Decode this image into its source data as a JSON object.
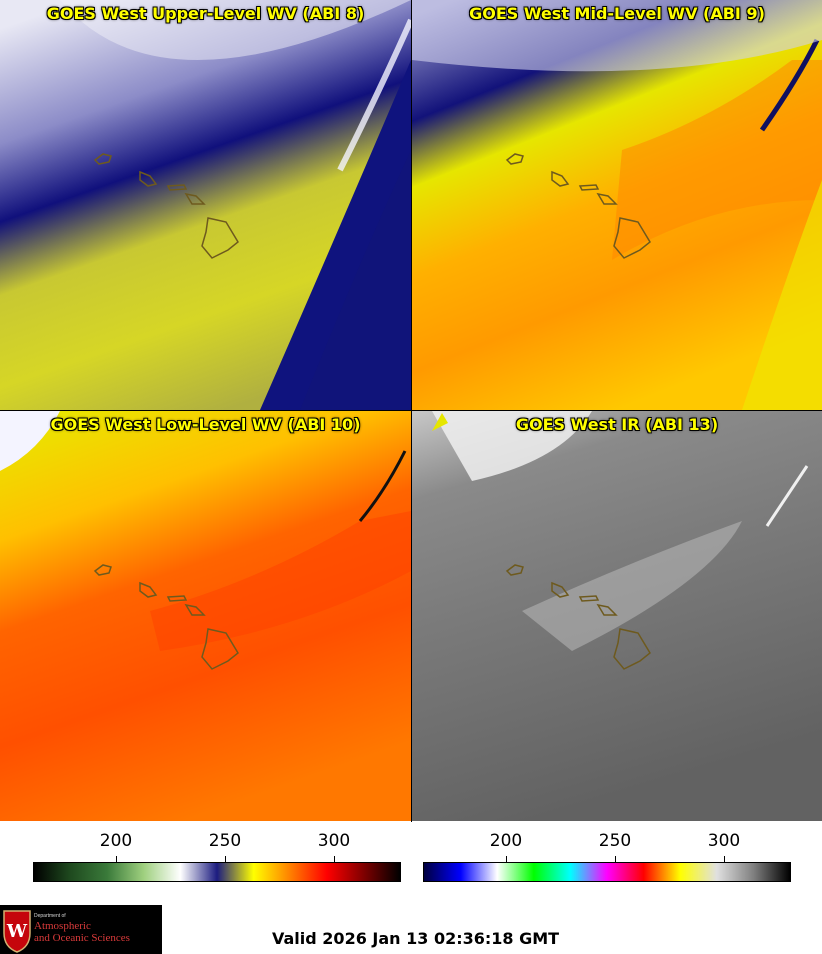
{
  "panels": [
    {
      "title": "GOES West Upper-Level WV (ABI 8)"
    },
    {
      "title": "GOES West Mid-Level WV (ABI 9)"
    },
    {
      "title": "GOES West Low-Level WV (ABI 10)"
    },
    {
      "title": "GOES West IR (ABI 13)"
    }
  ],
  "colorbars": [
    {
      "ticks": [
        "200",
        "250",
        "300"
      ],
      "colors": [
        "#000000",
        "#1f4a1f",
        "#3a7a3a",
        "#9fd07f",
        "#ffffff",
        "#1c1c80",
        "#ffff00",
        "#ff8000",
        "#ff0000",
        "#800000",
        "#000000"
      ]
    },
    {
      "ticks": [
        "200",
        "250",
        "300"
      ],
      "colors": [
        "#000040",
        "#0000ff",
        "#ffffff",
        "#00ff00",
        "#00ffff",
        "#ff00ff",
        "#ff0000",
        "#ffff00",
        "#e0e0e0",
        "#808080",
        "#000000"
      ]
    }
  ],
  "logo": {
    "dept": "Department of",
    "line1": "Atmospheric",
    "line2": "and Oceanic Sciences",
    "letter": "W"
  },
  "valid_text": "Valid 2026 Jan 13 02:36:18 GMT"
}
